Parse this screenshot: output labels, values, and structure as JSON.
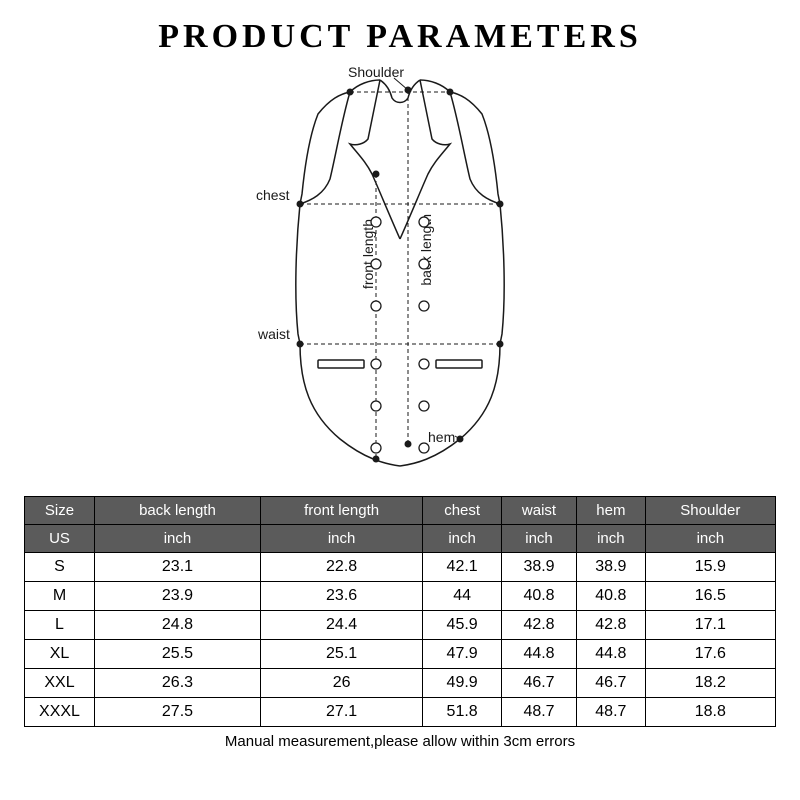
{
  "title": "PRODUCT PARAMETERS",
  "diagram": {
    "labels": {
      "shoulder": "Shoulder",
      "chest": "chest",
      "waist": "waist",
      "hem": "hem",
      "front_length": "front length",
      "back_length": "back length"
    },
    "stroke_color": "#1a1a1a",
    "fill_color": "#ffffff",
    "dot_color": "#1a1a1a"
  },
  "table": {
    "header_bg": "#5b5b5b",
    "header_fg": "#ffffff",
    "columns": [
      "Size",
      "back length",
      "front length",
      "chest",
      "waist",
      "hem",
      "Shoulder"
    ],
    "units_row": [
      "US",
      "inch",
      "inch",
      "inch",
      "inch",
      "inch",
      "inch"
    ],
    "rows": [
      [
        "S",
        "23.1",
        "22.8",
        "42.1",
        "38.9",
        "38.9",
        "15.9"
      ],
      [
        "M",
        "23.9",
        "23.6",
        "44",
        "40.8",
        "40.8",
        "16.5"
      ],
      [
        "L",
        "24.8",
        "24.4",
        "45.9",
        "42.8",
        "42.8",
        "17.1"
      ],
      [
        "XL",
        "25.5",
        "25.1",
        "47.9",
        "44.8",
        "44.8",
        "17.6"
      ],
      [
        "XXL",
        "26.3",
        "26",
        "49.9",
        "46.7",
        "46.7",
        "18.2"
      ],
      [
        "XXXL",
        "27.5",
        "27.1",
        "51.8",
        "48.7",
        "48.7",
        "18.8"
      ]
    ]
  },
  "footer": "Manual measurement,please allow within 3cm errors"
}
